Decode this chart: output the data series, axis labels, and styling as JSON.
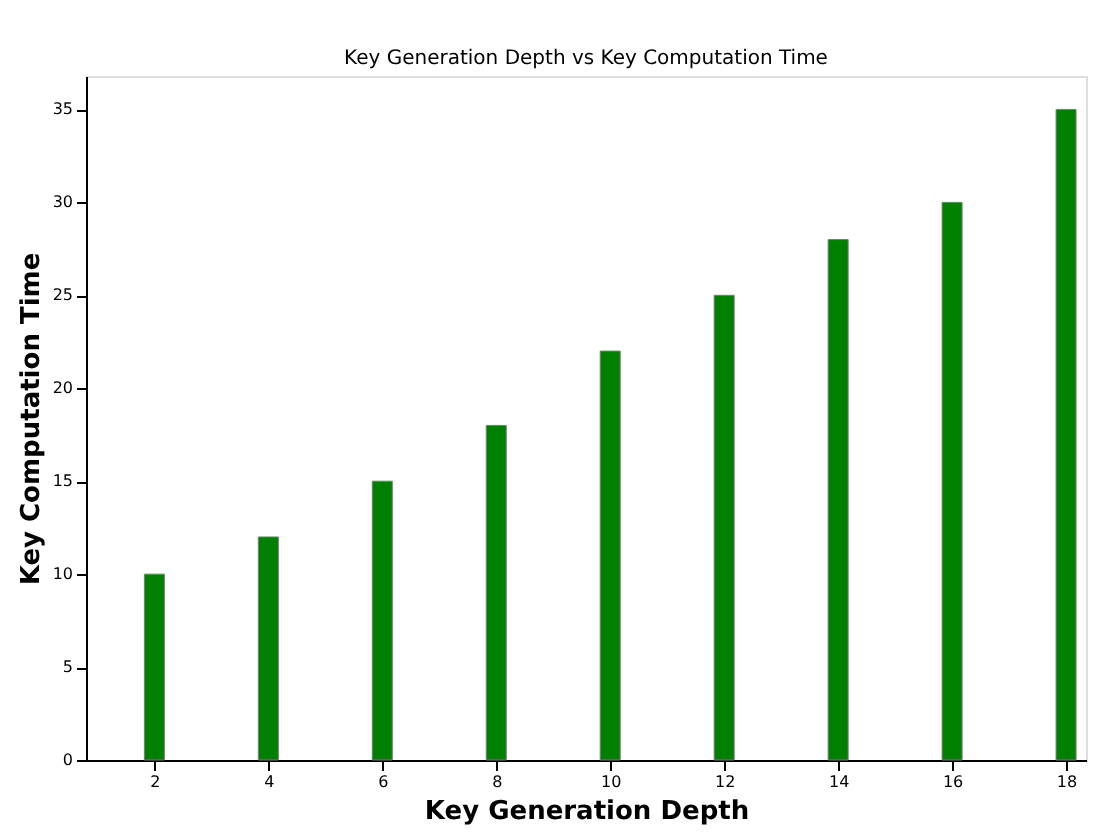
{
  "chart_data": {
    "type": "bar",
    "title": "Key Generation Depth vs Key Computation Time",
    "xlabel": "Key Generation Depth",
    "ylabel": "Key Computation Time",
    "x": [
      2,
      4,
      6,
      8,
      10,
      12,
      14,
      16,
      18
    ],
    "series": [
      {
        "color": "#008000",
        "values": [
          10,
          12,
          15,
          18,
          22,
          25,
          28,
          30,
          35
        ]
      }
    ],
    "xlim": [
      0.8,
      18.35
    ],
    "xticks": [
      2,
      4,
      6,
      8,
      10,
      12,
      14,
      16,
      18
    ],
    "ylim": [
      0,
      36.8
    ],
    "yticks": [
      0,
      5,
      10,
      15,
      20,
      25,
      30,
      35
    ],
    "grid": false
  }
}
